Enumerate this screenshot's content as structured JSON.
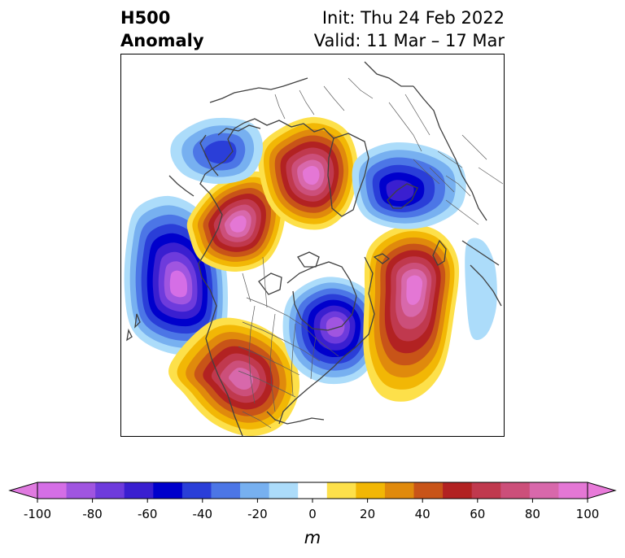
{
  "title": {
    "left_line1": "H500",
    "left_line2": "Anomaly",
    "right_line1": "Init: Thu 24 Feb 2022",
    "right_line2": "Valid: 11 Mar – 17 Mar"
  },
  "colorbar": {
    "unit_label": "m",
    "ticks": [
      "-100",
      "-80",
      "-60",
      "-40",
      "-20",
      "0",
      "20",
      "40",
      "60",
      "80",
      "100"
    ],
    "levels": [
      -100,
      -90,
      -80,
      -70,
      -60,
      -50,
      -40,
      -30,
      -20,
      -10,
      10,
      20,
      30,
      40,
      50,
      60,
      70,
      80,
      90,
      100
    ],
    "colors": [
      "#d56ee6",
      "#a055e0",
      "#6e3bdc",
      "#3a1fd0",
      "#0000cc",
      "#2a3ed8",
      "#4c76e6",
      "#77b0f0",
      "#acdcfa",
      "#ffffff",
      "#fde04a",
      "#f2b705",
      "#e08a0c",
      "#c85418",
      "#b22222",
      "#c0394e",
      "#cc4f7a",
      "#d868ab",
      "#e477d5"
    ],
    "under_color": "#e07ae0",
    "over_color": "#e87ad9"
  },
  "anomalies": [
    {
      "name": "pacific-low",
      "sign": "negative",
      "peak_m": -100
    },
    {
      "name": "western-north-america-ridge",
      "sign": "positive",
      "peak_m": 90
    },
    {
      "name": "hudson-bay-low",
      "sign": "negative",
      "peak_m": -80
    },
    {
      "name": "north-atlantic-ridge",
      "sign": "positive",
      "peak_m": 100
    },
    {
      "name": "siberia-ridge",
      "sign": "positive",
      "peak_m": 100
    },
    {
      "name": "alaska-east-siberia-ridge",
      "sign": "positive",
      "peak_m": 100
    },
    {
      "name": "scandinavia-low",
      "sign": "negative",
      "peak_m": -70
    },
    {
      "name": "central-asia-low",
      "sign": "negative",
      "peak_m": -40
    }
  ]
}
